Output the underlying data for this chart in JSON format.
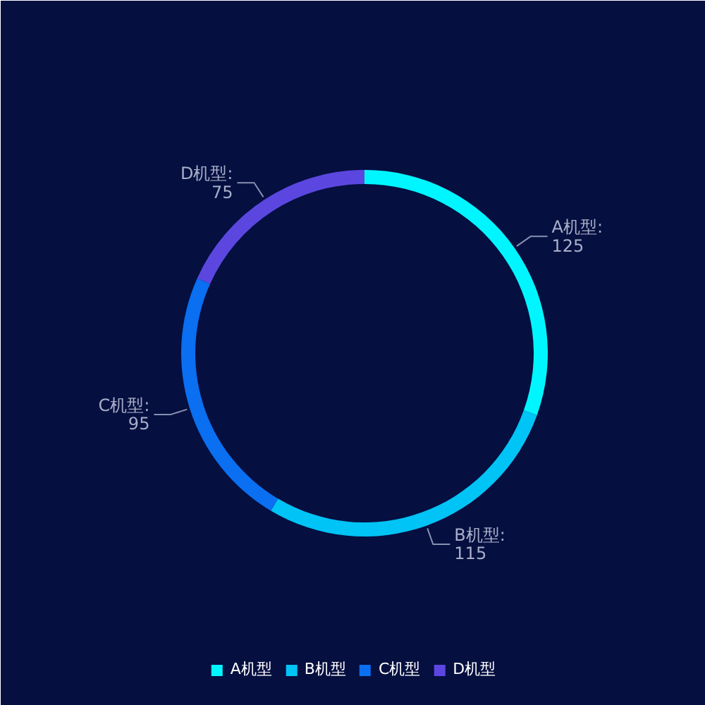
{
  "chart_data": {
    "type": "donut",
    "categories": [
      "A机型",
      "B机型",
      "C机型",
      "D机型"
    ],
    "values": [
      125,
      115,
      95,
      75
    ],
    "colors": [
      "#00f6ff",
      "#00c4f5",
      "#0a6ff0",
      "#5b47e0"
    ],
    "value_labels": [
      "A机型:\n125",
      "B机型:\n115",
      "C机型:\n95",
      "D机型:\n75"
    ],
    "legend": "bottom"
  }
}
